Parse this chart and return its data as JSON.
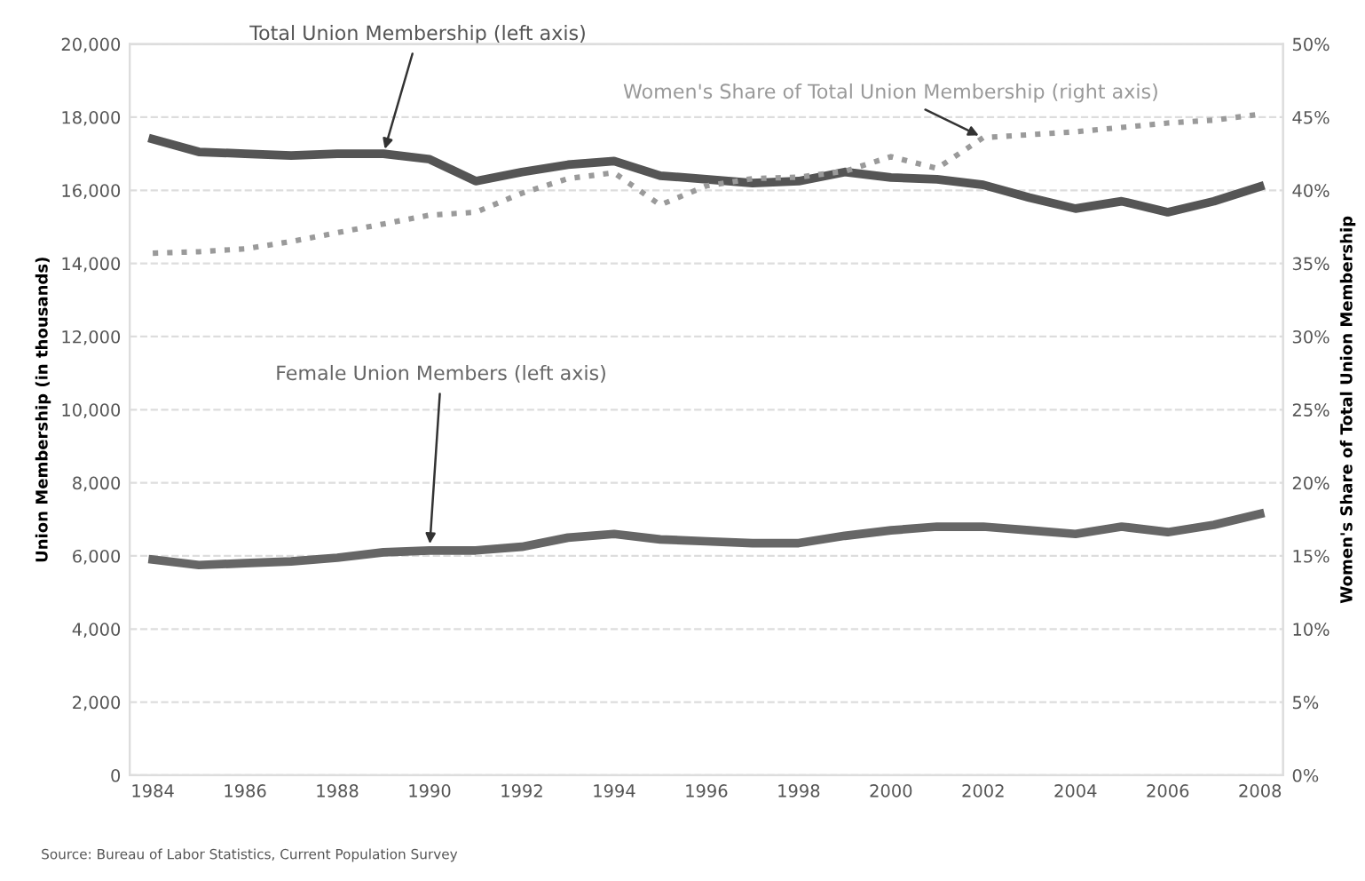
{
  "chart_data": {
    "type": "line",
    "x": [
      1984,
      1985,
      1986,
      1987,
      1988,
      1989,
      1990,
      1991,
      1992,
      1993,
      1994,
      1995,
      1996,
      1997,
      1998,
      1999,
      2000,
      2001,
      2002,
      2003,
      2004,
      2005,
      2006,
      2007,
      2008
    ],
    "series": [
      {
        "color": "#555555",
        "line_style": "solid",
        "values": [
          17400,
          17050,
          17000,
          16950,
          17000,
          17000,
          16850,
          16250,
          16500,
          16700,
          16800,
          16400,
          16300,
          16200,
          16250,
          16500,
          16350,
          16300,
          16150,
          15800,
          15500,
          15700,
          15400,
          15700,
          16100
        ]
      },
      {
        "color": "#666666",
        "line_style": "solid",
        "values": [
          5900,
          5750,
          5800,
          5850,
          5950,
          6100,
          6150,
          6150,
          6250,
          6500,
          6600,
          6450,
          6400,
          6350,
          6350,
          6550,
          6700,
          6800,
          6800,
          6700,
          6600,
          6800,
          6650,
          6850,
          7150
        ]
      },
      {
        "axis": "y2",
        "color": "#9a9a9a",
        "line_style": "dotted",
        "values": [
          35.7,
          35.8,
          36.0,
          36.5,
          37.1,
          37.7,
          38.3,
          38.5,
          39.8,
          40.8,
          41.2,
          39.0,
          40.3,
          40.8,
          40.9,
          41.3,
          42.3,
          41.5,
          43.6,
          43.8,
          44.0,
          44.3,
          44.6,
          44.8,
          45.2
        ]
      }
    ],
    "xlim": [
      1983.5,
      2008.5
    ],
    "xticks": [
      1984,
      1986,
      1988,
      1990,
      1992,
      1994,
      1996,
      1998,
      2000,
      2002,
      2004,
      2006,
      2008
    ],
    "ylim": [
      0,
      20000
    ],
    "yticks": [
      0,
      {
        "value": 2000,
        "label": "2,000"
      },
      {
        "value": 4000,
        "label": "4,000"
      },
      {
        "value": 6000,
        "label": "6,000"
      },
      {
        "value": 8000,
        "label": "8,000"
      },
      {
        "value": 10000,
        "label": "10,000"
      },
      {
        "value": 12000,
        "label": "12,000"
      },
      {
        "value": 14000,
        "label": "14,000"
      },
      {
        "value": 16000,
        "label": "16,000"
      },
      {
        "value": 18000,
        "label": "18,000"
      },
      {
        "value": 20000,
        "label": "20,000"
      }
    ],
    "y2lim": [
      0,
      50
    ],
    "y2ticks": [
      {
        "value": 0,
        "label": "0%"
      },
      {
        "value": 5,
        "label": "5%"
      },
      {
        "value": 10,
        "label": "10%"
      },
      {
        "value": 15,
        "label": "15%"
      },
      {
        "value": 20,
        "label": "20%"
      },
      {
        "value": 25,
        "label": "25%"
      },
      {
        "value": 30,
        "label": "30%"
      },
      {
        "value": 35,
        "label": "35%"
      },
      {
        "value": 40,
        "label": "40%"
      },
      {
        "value": 45,
        "label": "45%"
      },
      {
        "value": 50,
        "label": "50%"
      }
    ],
    "ylabel": "Union Membership (in thousands)",
    "y2label": "Women's Share of Total Union Membership",
    "grid": "y",
    "annotations": [
      {
        "text": "Total Union Membership (left axis)",
        "x": 1989,
        "y": 17000
      },
      {
        "text": "Women's Share of Total Union Membership (right axis)",
        "x": 2002,
        "y": 17440
      },
      {
        "text": "Female Union Members (left axis)",
        "x": 1990,
        "y": 6200
      },
      "Source: Bureau of Labor Statistics, Current Population Survey"
    ]
  }
}
